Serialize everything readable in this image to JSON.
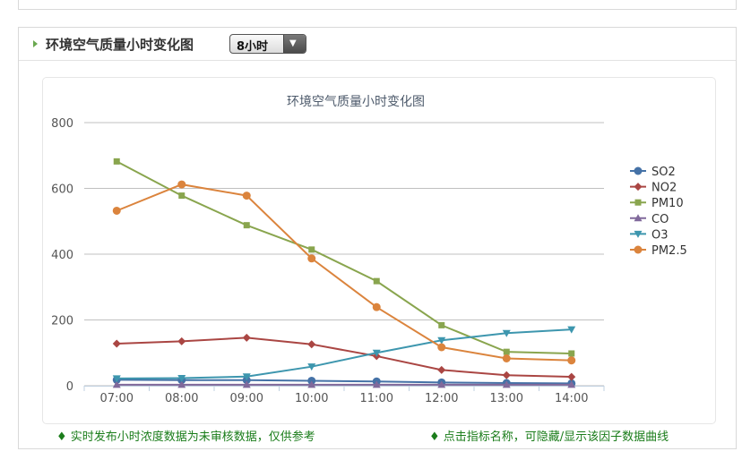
{
  "panel": {
    "title": "环境空气质量小时变化图",
    "range_select": {
      "value": "8小时",
      "arrow": "▼"
    }
  },
  "notes": {
    "left": "♦ 实时发布小时浓度数据为未审核数据，仅供参考",
    "right": "♦ 点击指标名称，可隐藏/显示该因子数据曲线"
  },
  "chart_data": {
    "type": "line",
    "title": "环境空气质量小时变化图",
    "xlabel": "",
    "ylabel": "",
    "categories": [
      "07:00",
      "08:00",
      "09:00",
      "10:00",
      "11:00",
      "12:00",
      "13:00",
      "14:00"
    ],
    "ylim": [
      0,
      800
    ],
    "yticks": [
      0,
      200,
      400,
      600,
      800
    ],
    "grid": "horizontal",
    "legend_position": "right",
    "series": [
      {
        "name": "SO2",
        "color": "#4572a7",
        "marker": "circle",
        "values": [
          18,
          17,
          17,
          15,
          13,
          10,
          8,
          7
        ]
      },
      {
        "name": "NO2",
        "color": "#aa4643",
        "marker": "diamond",
        "values": [
          128,
          135,
          146,
          126,
          90,
          48,
          32,
          27
        ]
      },
      {
        "name": "PM10",
        "color": "#89a54e",
        "marker": "square",
        "values": [
          682,
          578,
          488,
          414,
          318,
          184,
          103,
          98
        ]
      },
      {
        "name": "CO",
        "color": "#80699b",
        "marker": "triangle",
        "values": [
          3,
          3,
          3,
          3,
          3,
          3,
          3,
          3
        ]
      },
      {
        "name": "O3",
        "color": "#3d96ae",
        "marker": "triangle-down",
        "values": [
          22,
          23,
          28,
          58,
          100,
          138,
          160,
          171
        ]
      },
      {
        "name": "PM2.5",
        "color": "#db843d",
        "marker": "circle",
        "values": [
          532,
          612,
          578,
          387,
          239,
          117,
          83,
          77
        ]
      }
    ]
  }
}
